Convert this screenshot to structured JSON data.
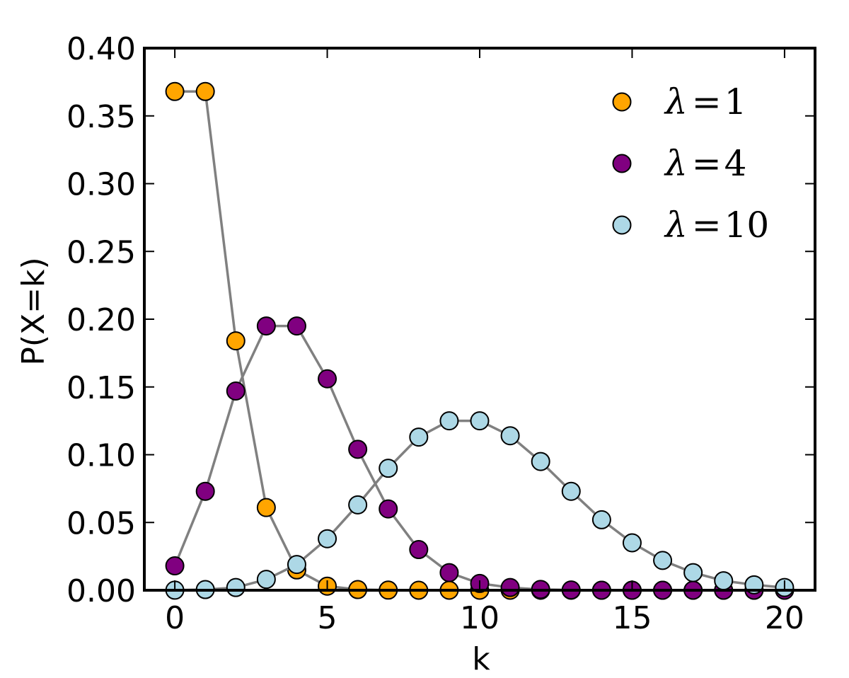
{
  "chart_data": {
    "type": "line",
    "title": "",
    "xlabel": "k",
    "ylabel": "P(X=k)",
    "xlim": [
      -1,
      21
    ],
    "ylim": [
      0.0,
      0.4
    ],
    "xticks": [
      0,
      5,
      10,
      15,
      20
    ],
    "xtick_labels": [
      "0",
      "5",
      "10",
      "15",
      "20"
    ],
    "yticks": [
      0.0,
      0.05,
      0.1,
      0.15,
      0.2,
      0.25,
      0.3,
      0.35,
      0.4
    ],
    "ytick_labels": [
      "0.00",
      "0.05",
      "0.10",
      "0.15",
      "0.20",
      "0.25",
      "0.30",
      "0.35",
      "0.40"
    ],
    "grid": false,
    "legend_position": "top-right",
    "line_color": "#808080",
    "marker": "circle",
    "series": [
      {
        "name": "λ=1",
        "color": "#FFA500",
        "x": [
          0,
          1,
          2,
          3,
          4,
          5,
          6,
          7,
          8,
          9,
          10,
          11,
          12,
          13,
          14,
          15,
          16,
          17,
          18,
          19,
          20
        ],
        "values": [
          0.368,
          0.368,
          0.184,
          0.061,
          0.015,
          0.003,
          0.0005,
          0.0001,
          0.0,
          0.0,
          0.0,
          0.0,
          0.0,
          0.0,
          0.0,
          0.0,
          0.0,
          0.0,
          0.0,
          0.0,
          0.0
        ]
      },
      {
        "name": "λ=4",
        "color": "#800080",
        "x": [
          0,
          1,
          2,
          3,
          4,
          5,
          6,
          7,
          8,
          9,
          10,
          11,
          12,
          13,
          14,
          15,
          16,
          17,
          18,
          19,
          20
        ],
        "values": [
          0.018,
          0.073,
          0.147,
          0.195,
          0.195,
          0.156,
          0.104,
          0.06,
          0.03,
          0.013,
          0.005,
          0.002,
          0.0006,
          0.0002,
          0.0,
          0.0,
          0.0,
          0.0,
          0.0,
          0.0,
          0.0
        ]
      },
      {
        "name": "λ=10",
        "color": "#ADD8E6",
        "x": [
          0,
          1,
          2,
          3,
          4,
          5,
          6,
          7,
          8,
          9,
          10,
          11,
          12,
          13,
          14,
          15,
          16,
          17,
          18,
          19,
          20
        ],
        "values": [
          5e-05,
          0.0005,
          0.002,
          0.008,
          0.019,
          0.038,
          0.063,
          0.09,
          0.113,
          0.125,
          0.125,
          0.114,
          0.095,
          0.073,
          0.052,
          0.035,
          0.022,
          0.013,
          0.007,
          0.004,
          0.002
        ]
      }
    ],
    "legend": [
      {
        "symbol": "λ",
        "eq": "=",
        "num": "1"
      },
      {
        "symbol": "λ",
        "eq": "=",
        "num": "4"
      },
      {
        "symbol": "λ",
        "eq": "=",
        "num": "10"
      }
    ]
  }
}
